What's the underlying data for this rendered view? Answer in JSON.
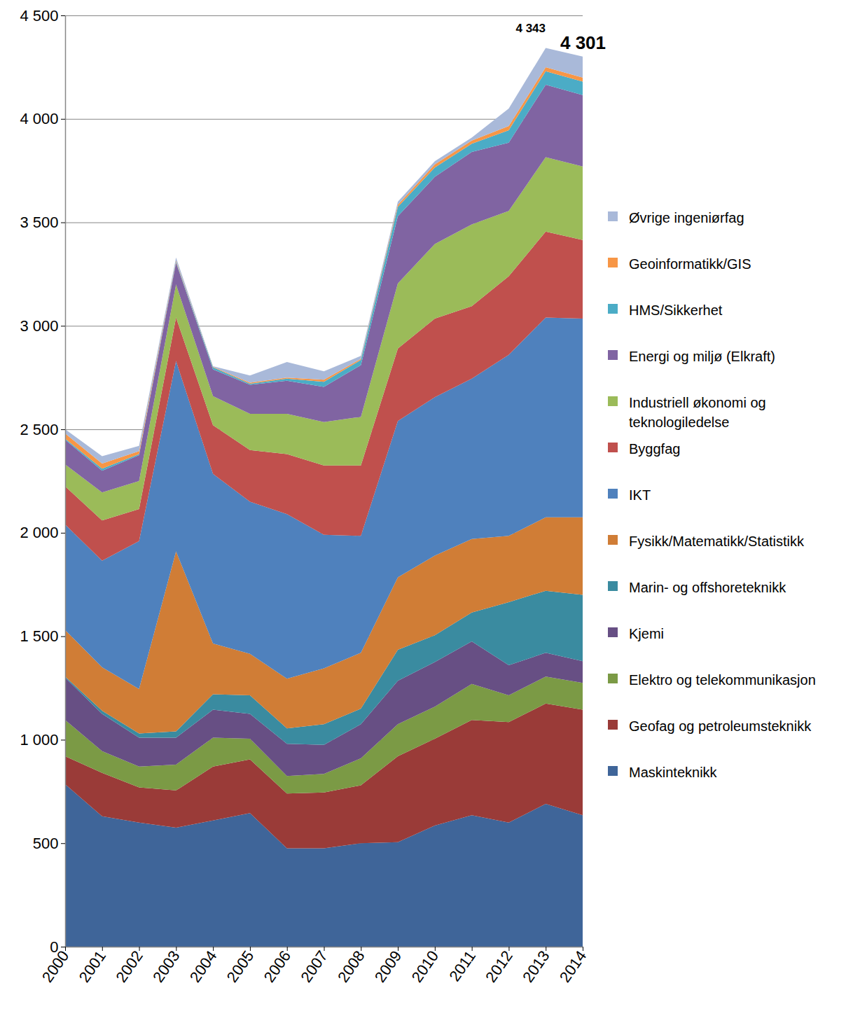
{
  "chart_data": {
    "type": "area",
    "stacked": true,
    "grid": true,
    "legend": "right",
    "x": [
      2000,
      2001,
      2002,
      2003,
      2004,
      2005,
      2006,
      2007,
      2008,
      2009,
      2010,
      2011,
      2012,
      2013,
      2014
    ],
    "xlim": [
      2000,
      2014
    ],
    "xticks": [
      2000,
      2001,
      2002,
      2003,
      2004,
      2005,
      2006,
      2007,
      2008,
      2009,
      2010,
      2011,
      2012,
      2013,
      2014
    ],
    "ylim": [
      0,
      4500
    ],
    "yticks": [
      0,
      500,
      {
        "value": 1000,
        "label": "1 000"
      },
      {
        "value": 1500,
        "label": "1 500"
      },
      {
        "value": 2000,
        "label": "2 000"
      },
      {
        "value": 2500,
        "label": "2 500"
      },
      {
        "value": 3000,
        "label": "3 000"
      },
      {
        "value": 3500,
        "label": "3 500"
      },
      {
        "value": 4000,
        "label": "4 000"
      },
      {
        "value": 4500,
        "label": "4 500"
      }
    ],
    "series": [
      {
        "name": "Maskinteknikk",
        "color": "#3f6599",
        "values": [
          785,
          630,
          600,
          575,
          610,
          645,
          475,
          475,
          500,
          505,
          585,
          635,
          600,
          690,
          635
        ]
      },
      {
        "name": "Geofag og petroleumsteknikk",
        "color": "#9a3b38",
        "values": [
          135,
          210,
          170,
          180,
          260,
          260,
          265,
          270,
          280,
          415,
          420,
          460,
          485,
          485,
          510
        ]
      },
      {
        "name": "Elektro og telekommunikasjon",
        "color": "#7b9a45",
        "values": [
          175,
          105,
          100,
          125,
          140,
          100,
          85,
          90,
          130,
          155,
          155,
          175,
          130,
          130,
          130
        ]
      },
      {
        "name": "Kjemi",
        "color": "#674f84",
        "values": [
          205,
          180,
          140,
          130,
          135,
          120,
          155,
          140,
          165,
          210,
          215,
          205,
          145,
          115,
          105
        ]
      },
      {
        "name": "Marin- og offshoreteknikk",
        "color": "#3a8ba0",
        "values": [
          5,
          15,
          20,
          30,
          75,
          90,
          75,
          100,
          75,
          150,
          130,
          140,
          305,
          300,
          320
        ]
      },
      {
        "name": "Fysikk/Matematikk/Statistikk",
        "color": "#d07d36",
        "values": [
          225,
          210,
          215,
          870,
          245,
          200,
          240,
          270,
          270,
          350,
          385,
          355,
          320,
          355,
          375
        ]
      },
      {
        "name": "IKT",
        "color": "#4f81bd",
        "values": [
          510,
          515,
          715,
          920,
          820,
          735,
          795,
          645,
          565,
          755,
          765,
          775,
          875,
          965,
          960
        ]
      },
      {
        "name": "Byggfag",
        "color": "#c0504d",
        "values": [
          185,
          195,
          155,
          210,
          235,
          250,
          290,
          335,
          340,
          350,
          380,
          350,
          380,
          415,
          380
        ]
      },
      {
        "name": "Industriell økonomi og teknologiledelse",
        "color": "#9bbb59",
        "values": [
          105,
          135,
          135,
          160,
          140,
          175,
          195,
          210,
          235,
          315,
          360,
          395,
          315,
          360,
          355
        ]
      },
      {
        "name": "Energi og miljø (Elkraft)",
        "color": "#8064a2",
        "values": [
          120,
          105,
          125,
          105,
          130,
          140,
          160,
          170,
          250,
          325,
          325,
          350,
          330,
          350,
          345
        ]
      },
      {
        "name": "HMS/Sikkerhet",
        "color": "#4bacc6",
        "values": [
          5,
          10,
          5,
          5,
          10,
          5,
          10,
          25,
          25,
          45,
          45,
          40,
          60,
          65,
          65
        ]
      },
      {
        "name": "Geoinformatikk/GIS",
        "color": "#f79646",
        "values": [
          25,
          25,
          15,
          5,
          2,
          5,
          5,
          10,
          5,
          10,
          15,
          15,
          20,
          20,
          20
        ]
      },
      {
        "name": "Øvrige ingeniørfag",
        "color": "#a9b9d9",
        "values": [
          20,
          35,
          25,
          15,
          3,
          35,
          75,
          40,
          15,
          15,
          15,
          15,
          85,
          93,
          101
        ]
      }
    ],
    "annotations": [
      {
        "x": 2013,
        "y": 4343,
        "label": "4 343"
      },
      {
        "x": 2014,
        "y": 4301,
        "label": "4 301"
      }
    ]
  }
}
